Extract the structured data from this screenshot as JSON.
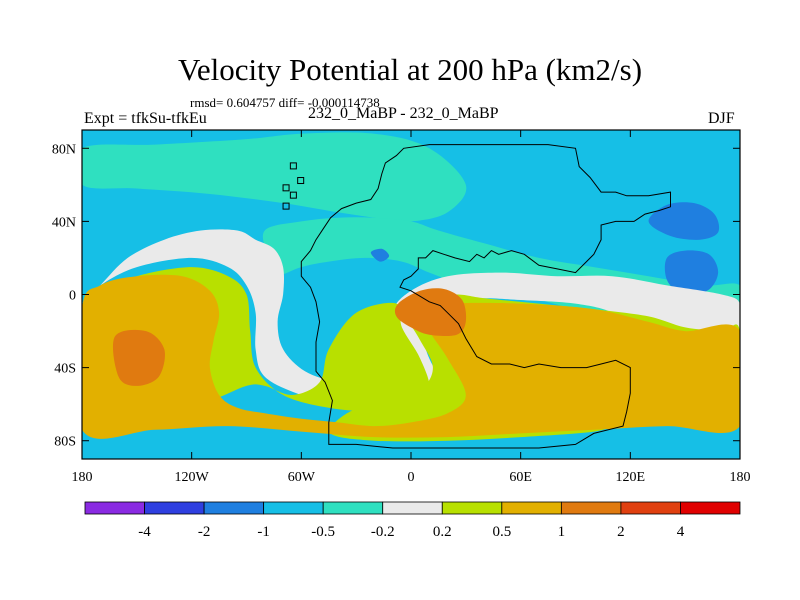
{
  "chart_data": {
    "type": "heatmap",
    "title": "Velocity Potential at 200 hPa (km2/s)",
    "stats_line": "rmsd= 0.604757  diff= -0.000114738",
    "left_label": "Expt = tfkSu-tfkEu",
    "center_label": "232_0_MaBP - 232_0_MaBP",
    "right_label": "DJF",
    "x_axis": {
      "range": [
        -180,
        180
      ],
      "ticks": [
        {
          "value": -180,
          "label": "180"
        },
        {
          "value": -120,
          "label": "120W"
        },
        {
          "value": -60,
          "label": "60W"
        },
        {
          "value": 0,
          "label": "0"
        },
        {
          "value": 60,
          "label": "60E"
        },
        {
          "value": 120,
          "label": "120E"
        },
        {
          "value": 180,
          "label": "180"
        }
      ]
    },
    "y_axis": {
      "range": [
        -90,
        90
      ],
      "ticks": [
        {
          "value": 80,
          "label": "80N"
        },
        {
          "value": 40,
          "label": "40N"
        },
        {
          "value": 0,
          "label": "0"
        },
        {
          "value": -40,
          "label": "40S"
        },
        {
          "value": -80,
          "label": "80S"
        }
      ]
    },
    "colorbar": {
      "colors": [
        "#8a2be2",
        "#2f3fe0",
        "#1f7fe0",
        "#16bfe6",
        "#2fe0c0",
        "#eaeaea",
        "#b8e000",
        "#e2b000",
        "#e07a10",
        "#e04010",
        "#e00000"
      ],
      "labels": [
        {
          "boundary": 1,
          "label": "-4"
        },
        {
          "boundary": 2,
          "label": "-2"
        },
        {
          "boundary": 3,
          "label": "-1"
        },
        {
          "boundary": 4,
          "label": "-0.5"
        },
        {
          "boundary": 5,
          "label": "-0.2"
        },
        {
          "boundary": 6,
          "label": "0.2"
        },
        {
          "boundary": 7,
          "label": "0.5"
        },
        {
          "boundary": 8,
          "label": "1"
        },
        {
          "boundary": 9,
          "label": "2"
        },
        {
          "boundary": 10,
          "label": "4"
        }
      ]
    },
    "fields": {
      "background": 3,
      "regions": [
        {
          "level": 4,
          "points": [
            [
              -180,
              80
            ],
            [
              -140,
              82
            ],
            [
              -90,
              85
            ],
            [
              -60,
              88
            ],
            [
              -20,
              88
            ],
            [
              10,
              80
            ],
            [
              30,
              60
            ],
            [
              20,
              45
            ],
            [
              0,
              40
            ],
            [
              -20,
              42
            ],
            [
              -40,
              45
            ],
            [
              -70,
              50
            ],
            [
              -110,
              55
            ],
            [
              -150,
              58
            ],
            [
              -180,
              60
            ]
          ]
        },
        {
          "level": 4,
          "points": [
            [
              -80,
              35
            ],
            [
              -60,
              40
            ],
            [
              -40,
              42
            ],
            [
              -20,
              42
            ],
            [
              0,
              40
            ],
            [
              15,
              35
            ],
            [
              40,
              28
            ],
            [
              70,
              20
            ],
            [
              100,
              15
            ],
            [
              130,
              10
            ],
            [
              160,
              5
            ],
            [
              180,
              5
            ],
            [
              180,
              -12
            ],
            [
              150,
              -14
            ],
            [
              120,
              -12
            ],
            [
              90,
              -8
            ],
            [
              60,
              0
            ],
            [
              30,
              5
            ],
            [
              10,
              12
            ],
            [
              -5,
              18
            ],
            [
              -25,
              20
            ],
            [
              -45,
              18
            ],
            [
              -60,
              15
            ],
            [
              -75,
              10
            ],
            [
              -78,
              20
            ]
          ]
        },
        {
          "level": 2,
          "points": [
            [
              130,
              40
            ],
            [
              140,
              49
            ],
            [
              155,
              50
            ],
            [
              166,
              44
            ],
            [
              168,
              34
            ],
            [
              158,
              30
            ],
            [
              142,
              32
            ]
          ]
        },
        {
          "level": 2,
          "points": [
            [
              140,
              20
            ],
            [
              150,
              24
            ],
            [
              163,
              22
            ],
            [
              168,
              12
            ],
            [
              162,
              2
            ],
            [
              148,
              1
            ],
            [
              140,
              8
            ]
          ]
        },
        {
          "level": 2,
          "points": [
            [
              -22,
              23
            ],
            [
              -16,
              25
            ],
            [
              -12,
              21
            ],
            [
              -17,
              18
            ]
          ]
        },
        {
          "level": 5,
          "points": [
            [
              -180,
              -5
            ],
            [
              -170,
              5
            ],
            [
              -155,
              20
            ],
            [
              -135,
              30
            ],
            [
              -115,
              35
            ],
            [
              -95,
              35
            ],
            [
              -85,
              30
            ],
            [
              -75,
              25
            ],
            [
              -70,
              15
            ],
            [
              -70,
              0
            ],
            [
              -73,
              -15
            ],
            [
              -70,
              -30
            ],
            [
              -58,
              -42
            ],
            [
              -40,
              -48
            ],
            [
              -20,
              -50
            ],
            [
              -8,
              -45
            ],
            [
              -5,
              -30
            ],
            [
              -10,
              -10
            ],
            [
              0,
              2
            ],
            [
              20,
              10
            ],
            [
              50,
              12
            ],
            [
              80,
              10
            ],
            [
              110,
              10
            ],
            [
              140,
              5
            ],
            [
              170,
              0
            ],
            [
              180,
              -5
            ],
            [
              180,
              -20
            ],
            [
              160,
              -30
            ],
            [
              130,
              -30
            ],
            [
              115,
              -20
            ],
            [
              110,
              -10
            ],
            [
              90,
              -5
            ],
            [
              60,
              -3
            ],
            [
              40,
              -2
            ],
            [
              20,
              -3
            ],
            [
              10,
              -5
            ],
            [
              5,
              -15
            ],
            [
              10,
              -35
            ],
            [
              20,
              -50
            ],
            [
              30,
              -60
            ],
            [
              10,
              -62
            ],
            [
              -15,
              -62
            ],
            [
              -40,
              -60
            ],
            [
              -60,
              -55
            ],
            [
              -80,
              -45
            ],
            [
              -85,
              -30
            ],
            [
              -85,
              -10
            ],
            [
              -90,
              5
            ],
            [
              -100,
              15
            ],
            [
              -120,
              20
            ],
            [
              -150,
              15
            ],
            [
              -170,
              5
            ]
          ]
        },
        {
          "level": 6,
          "points": [
            [
              -180,
              -15
            ],
            [
              -170,
              0
            ],
            [
              -150,
              10
            ],
            [
              -120,
              15
            ],
            [
              -100,
              10
            ],
            [
              -90,
              0
            ],
            [
              -88,
              -20
            ],
            [
              -85,
              -40
            ],
            [
              -70,
              -55
            ],
            [
              -45,
              -62
            ],
            [
              -20,
              -64
            ],
            [
              0,
              -62
            ],
            [
              10,
              -52
            ],
            [
              5,
              -35
            ],
            [
              -5,
              -18
            ],
            [
              -8,
              -5
            ],
            [
              -30,
              -10
            ],
            [
              -45,
              -30
            ],
            [
              -50,
              -48
            ],
            [
              -65,
              -55
            ],
            [
              -80,
              -50
            ],
            [
              -90,
              -50
            ],
            [
              -110,
              -58
            ],
            [
              -140,
              -65
            ],
            [
              -165,
              -68
            ],
            [
              -180,
              -68
            ]
          ]
        },
        {
          "level": 6,
          "points": [
            [
              -5,
              -5
            ],
            [
              10,
              -2
            ],
            [
              25,
              0
            ],
            [
              40,
              -2
            ],
            [
              70,
              -5
            ],
            [
              100,
              -8
            ],
            [
              130,
              -12
            ],
            [
              150,
              -18
            ],
            [
              170,
              -20
            ],
            [
              180,
              -20
            ],
            [
              180,
              -70
            ],
            [
              150,
              -72
            ],
            [
              120,
              -70
            ],
            [
              100,
              -75
            ],
            [
              60,
              -78
            ],
            [
              20,
              -80
            ],
            [
              -20,
              -80
            ],
            [
              -44,
              -76
            ],
            [
              -35,
              -65
            ],
            [
              -15,
              -58
            ],
            [
              5,
              -52
            ],
            [
              12,
              -40
            ],
            [
              5,
              -25
            ],
            [
              -3,
              -12
            ]
          ]
        },
        {
          "level": 7,
          "points": [
            [
              -180,
              -8
            ],
            [
              -170,
              5
            ],
            [
              -150,
              10
            ],
            [
              -125,
              10
            ],
            [
              -110,
              2
            ],
            [
              -105,
              -10
            ],
            [
              -108,
              -25
            ],
            [
              -110,
              -40
            ],
            [
              -105,
              -55
            ],
            [
              -95,
              -62
            ],
            [
              -80,
              -65
            ],
            [
              -60,
              -68
            ],
            [
              -40,
              -70
            ],
            [
              -20,
              -72
            ],
            [
              0,
              -70
            ],
            [
              20,
              -65
            ],
            [
              30,
              -55
            ],
            [
              20,
              -35
            ],
            [
              10,
              -20
            ],
            [
              5,
              -8
            ],
            [
              20,
              -5
            ],
            [
              60,
              -5
            ],
            [
              100,
              -8
            ],
            [
              130,
              -15
            ],
            [
              150,
              -20
            ],
            [
              180,
              -20
            ],
            [
              180,
              -72
            ],
            [
              140,
              -72
            ],
            [
              100,
              -74
            ],
            [
              60,
              -76
            ],
            [
              20,
              -78
            ],
            [
              -20,
              -78
            ],
            [
              -60,
              -75
            ],
            [
              -100,
              -72
            ],
            [
              -140,
              -74
            ],
            [
              -180,
              -74
            ]
          ]
        },
        {
          "level": 8,
          "points": [
            [
              -162,
              -23
            ],
            [
              -145,
              -20
            ],
            [
              -135,
              -30
            ],
            [
              -138,
              -45
            ],
            [
              -150,
              -50
            ],
            [
              -160,
              -45
            ]
          ]
        },
        {
          "level": 8,
          "points": [
            [
              -7,
              -5
            ],
            [
              5,
              2
            ],
            [
              18,
              3
            ],
            [
              28,
              -3
            ],
            [
              30,
              -15
            ],
            [
              25,
              -22
            ],
            [
              10,
              -22
            ],
            [
              0,
              -18
            ],
            [
              -8,
              -12
            ]
          ]
        }
      ]
    }
  }
}
